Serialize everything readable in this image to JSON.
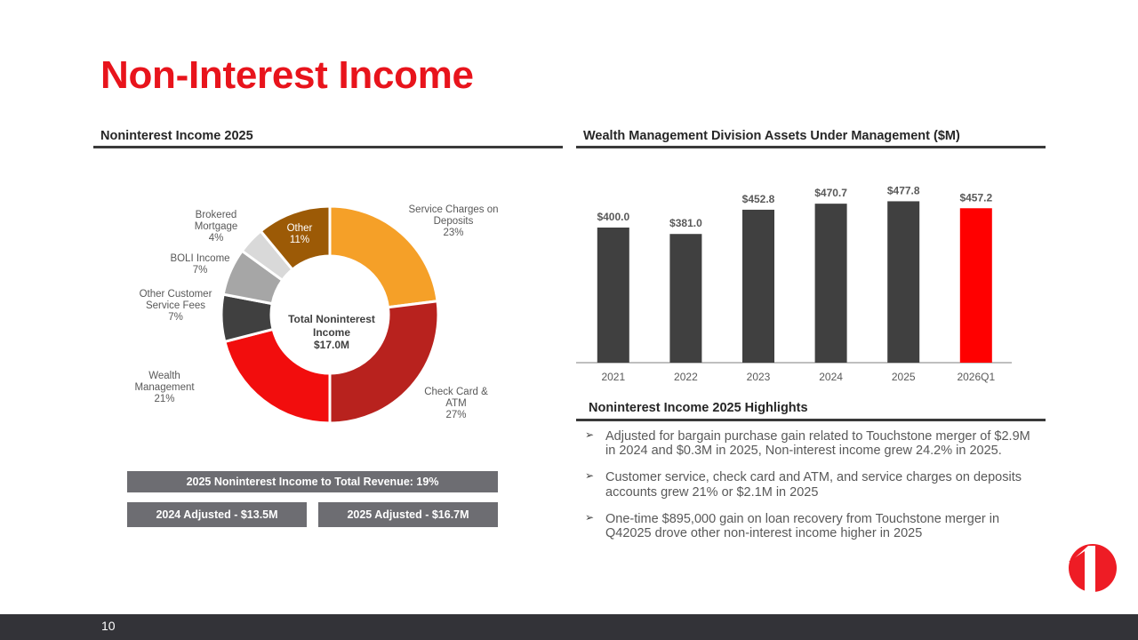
{
  "title": "Non-Interest Income",
  "left_section": {
    "heading": "Noninterest Income 2025",
    "center_label": "Total Noninterest\nIncome",
    "center_value": "$17.0M",
    "boxes": {
      "ratio": "2025 Noninterest Income to Total Revenue: 19%",
      "adj_2024": "2024 Adjusted  - $13.5M",
      "adj_2025": "2025 Adjusted  - $16.7M"
    }
  },
  "right_section": {
    "heading": "Wealth Management Division Assets Under Management ($M)",
    "highlights_heading": "Noninterest Income 2025 Highlights",
    "bullet_glyph": "➢",
    "highlights": [
      "Adjusted for bargain purchase gain related to Touchstone merger of $2.9M in 2024 and $0.3M in 2025, Non-interest income grew 24.2% in 2025.",
      "Customer service, check card and ATM, and service charges on deposits accounts grew 21% or $2.1M in 2025",
      "One-time $895,000 gain on loan recovery from Touchstone merger in Q42025 drove other non-interest income higher in 2025"
    ]
  },
  "chart_data": [
    {
      "type": "pie",
      "slices": [
        {
          "label": "Service Charges on\nDeposits",
          "pct_label": "23%",
          "value": 23,
          "color": "#f5a028"
        },
        {
          "label": "Check Card &\nATM",
          "pct_label": "27%",
          "value": 27,
          "color": "#b8221e"
        },
        {
          "label": "Wealth\nManagement",
          "pct_label": "21%",
          "value": 21,
          "color": "#f20d0d"
        },
        {
          "label": "Other Customer\nService Fees",
          "pct_label": "7%",
          "value": 7,
          "color": "#404040"
        },
        {
          "label": "BOLI Income",
          "pct_label": "7%",
          "value": 7,
          "color": "#a6a6a6"
        },
        {
          "label": "Brokered\nMortgage",
          "pct_label": "4%",
          "value": 4,
          "color": "#d9d9d9"
        },
        {
          "label": "Other",
          "pct_label": "11%",
          "value": 11,
          "color": "#9c5a06"
        }
      ]
    },
    {
      "type": "bar",
      "categories": [
        "2021",
        "2022",
        "2023",
        "2024",
        "2025",
        "2026Q1"
      ],
      "values": [
        400.0,
        381.0,
        452.8,
        470.7,
        477.8,
        457.2
      ],
      "data_labels": [
        "$400.0",
        "$381.0",
        "$452.8",
        "$470.7",
        "$477.8",
        "$457.2"
      ],
      "colors": [
        "#404040",
        "#404040",
        "#404040",
        "#404040",
        "#404040",
        "#ff0000"
      ],
      "ylim": [
        0,
        500
      ]
    }
  ],
  "page_number": "10"
}
